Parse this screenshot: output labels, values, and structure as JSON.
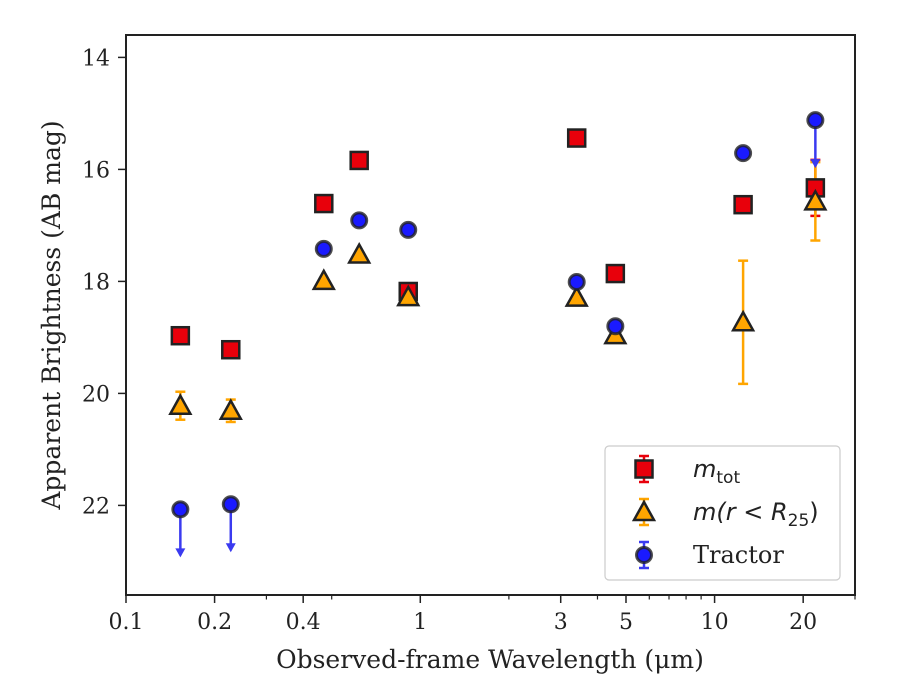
{
  "chart_data": {
    "type": "scatter",
    "title": "",
    "xlabel": "Observed-frame Wavelength (μm)",
    "ylabel": "Apparent Brightness (AB mag)",
    "xscale": "log",
    "xlim": [
      0.1,
      30
    ],
    "ylim": [
      23.6,
      13.6
    ],
    "y_inverted": true,
    "x_ticks": [
      0.1,
      0.2,
      0.4,
      1,
      3,
      5,
      10,
      20
    ],
    "x_tick_labels": [
      "0.1",
      "0.2",
      "0.4",
      "1",
      "3",
      "5",
      "10",
      "20"
    ],
    "y_ticks": [
      14,
      16,
      18,
      20,
      22
    ],
    "y_tick_labels": [
      "14",
      "16",
      "18",
      "20",
      "22"
    ],
    "grid": false,
    "legend_position": "lower-right",
    "colors": {
      "m_tot": "#e8000b",
      "m_r25": "#ffa500",
      "tractor": "#1a1aff",
      "tractor_arrow": "#3a3af0",
      "edge": "#222222"
    },
    "series": [
      {
        "name": "m_tot",
        "legend_parts": [
          "m",
          "tot"
        ],
        "marker": "square",
        "points": [
          {
            "x": 0.153,
            "y": 18.97
          },
          {
            "x": 0.227,
            "y": 19.22
          },
          {
            "x": 0.47,
            "y": 16.61
          },
          {
            "x": 0.62,
            "y": 15.84
          },
          {
            "x": 0.91,
            "y": 18.18
          },
          {
            "x": 3.4,
            "y": 15.44
          },
          {
            "x": 4.6,
            "y": 17.86
          },
          {
            "x": 12.5,
            "y": 16.63
          },
          {
            "x": 22.0,
            "y": 16.33,
            "yerr": 0.5
          }
        ]
      },
      {
        "name": "m(r<R25)",
        "legend_parts": [
          "m(r < R",
          "25",
          ")"
        ],
        "marker": "triangle",
        "points": [
          {
            "x": 0.153,
            "y": 20.22,
            "yerr": 0.25
          },
          {
            "x": 0.227,
            "y": 20.31,
            "yerr": 0.2
          },
          {
            "x": 0.47,
            "y": 17.99
          },
          {
            "x": 0.62,
            "y": 17.52
          },
          {
            "x": 0.91,
            "y": 18.28
          },
          {
            "x": 3.4,
            "y": 18.29
          },
          {
            "x": 4.6,
            "y": 18.96
          },
          {
            "x": 12.5,
            "y": 18.73,
            "yerr": 1.1
          },
          {
            "x": 22.0,
            "y": 16.57,
            "yerr": 0.7
          }
        ]
      },
      {
        "name": "Tractor",
        "legend_parts": [
          "Tractor"
        ],
        "marker": "circle",
        "points": [
          {
            "x": 0.153,
            "y": 22.07,
            "upper_limit": true
          },
          {
            "x": 0.227,
            "y": 21.98,
            "upper_limit": true
          },
          {
            "x": 0.47,
            "y": 17.42
          },
          {
            "x": 0.62,
            "y": 16.91
          },
          {
            "x": 0.91,
            "y": 17.08
          },
          {
            "x": 3.4,
            "y": 18.01
          },
          {
            "x": 4.6,
            "y": 18.8
          },
          {
            "x": 12.5,
            "y": 15.71
          },
          {
            "x": 22.0,
            "y": 15.12,
            "upper_limit": true
          }
        ]
      }
    ]
  }
}
